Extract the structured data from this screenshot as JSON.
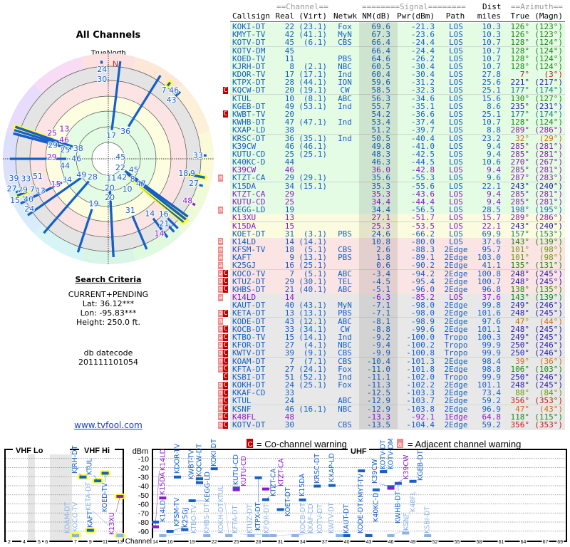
{
  "left_panel": {
    "title": "All Channels",
    "compass_label": "TrueNorth",
    "north_label": "N",
    "search_criteria": {
      "heading": "Search Criteria",
      "mode": "CURRENT+PENDING",
      "lat": "Lat: 36.12***",
      "lon": "Lon: -95.83***",
      "height": "Height: 250.0 ft.",
      "db_label": "db datecode",
      "db_value": "201111101054"
    },
    "link": "www.tvfool.com"
  },
  "table": {
    "group_headers": {
      "channel": "==Channel==",
      "signal": "========Signal========",
      "dist": "Dist",
      "azimuth": "==Azimuth=="
    },
    "columns": {
      "callsign": "Callsign",
      "real": "Real",
      "virt": "(Virt)",
      "netwk": "Netwk",
      "nm": "NM(dB)",
      "pwr": "Pwr(dBm)",
      "path": "Path",
      "dist": "miles",
      "true": "True",
      "magn": "(Magn)"
    },
    "rows": [
      {
        "callsign": "KOKI-DT",
        "real": "22",
        "virt": "(23.1)",
        "netwk": "Fox",
        "nm": "69.6",
        "pwr": "-21.3",
        "path": "LOS",
        "dist": "10.3",
        "true": "126°",
        "magn": "(123°)",
        "flags": "",
        "type": "digital",
        "zone": "green"
      },
      {
        "callsign": "KMYT-TV",
        "real": "42",
        "virt": "(41.1)",
        "netwk": "MyN",
        "nm": "67.3",
        "pwr": "-23.6",
        "path": "LOS",
        "dist": "10.3",
        "true": "126°",
        "magn": "(123°)",
        "flags": "",
        "type": "digital",
        "zone": "green"
      },
      {
        "callsign": "KOTV-DT",
        "real": "45",
        "virt": "(6.1)",
        "netwk": "CBS",
        "nm": "66.4",
        "pwr": "-24.4",
        "path": "LOS",
        "dist": "10.7",
        "true": "128°",
        "magn": "(124°)",
        "flags": "",
        "type": "digital",
        "zone": "green"
      },
      {
        "callsign": "KOTV-DM",
        "real": "45",
        "virt": "",
        "netwk": "",
        "nm": "66.4",
        "pwr": "-24.4",
        "path": "LOS",
        "dist": "10.7",
        "true": "128°",
        "magn": "(124°)",
        "flags": "",
        "type": "digital",
        "zone": "green"
      },
      {
        "callsign": "KOED-TV",
        "real": "11",
        "virt": "",
        "netwk": "PBS",
        "nm": "64.6",
        "pwr": "-26.2",
        "path": "LOS",
        "dist": "10.7",
        "true": "128°",
        "magn": "(124°)",
        "flags": "",
        "type": "digital",
        "zone": "green"
      },
      {
        "callsign": "KJRH-DT",
        "real": "8",
        "virt": "(2.1)",
        "netwk": "NBC",
        "nm": "60.5",
        "pwr": "-30.4",
        "path": "LOS",
        "dist": "10.7",
        "true": "128°",
        "magn": "(124°)",
        "flags": "",
        "type": "digital",
        "zone": "green"
      },
      {
        "callsign": "KDOR-TV",
        "real": "17",
        "virt": "(17.1)",
        "netwk": "Ind",
        "nm": "60.4",
        "pwr": "-30.4",
        "path": "LOS",
        "dist": "27.8",
        "true": "7°",
        "magn": "(3°)",
        "flags": "",
        "type": "digital",
        "zone": "green"
      },
      {
        "callsign": "KTPX-DT",
        "real": "28",
        "virt": "(44.1)",
        "netwk": "ION",
        "nm": "59.6",
        "pwr": "-31.2",
        "path": "LOS",
        "dist": "25.6",
        "true": "221°",
        "magn": "(217°)",
        "flags": "",
        "type": "digital",
        "zone": "green"
      },
      {
        "callsign": "KQCW-DT",
        "real": "20",
        "virt": "(19.1)",
        "netwk": "CW",
        "nm": "58.5",
        "pwr": "-32.3",
        "path": "LOS",
        "dist": "25.1",
        "true": "177°",
        "magn": "(174°)",
        "flags": "C",
        "type": "digital",
        "zone": "green"
      },
      {
        "callsign": "KTUL",
        "real": "10",
        "virt": "(8.1)",
        "netwk": "ABC",
        "nm": "56.3",
        "pwr": "-34.6",
        "path": "LOS",
        "dist": "15.6",
        "true": "130°",
        "magn": "(127°)",
        "flags": "",
        "type": "digital",
        "zone": "green"
      },
      {
        "callsign": "KGEB-DT",
        "real": "49",
        "virt": "(53.1)",
        "netwk": "Ind",
        "nm": "55.7",
        "pwr": "-35.1",
        "path": "LOS",
        "dist": "8.6",
        "true": "235°",
        "magn": "(231°)",
        "flags": "",
        "type": "digital",
        "zone": "green"
      },
      {
        "callsign": "KWBT-TV",
        "real": "20",
        "virt": "",
        "netwk": "",
        "nm": "54.2",
        "pwr": "-36.6",
        "path": "LOS",
        "dist": "25.1",
        "true": "177°",
        "magn": "(174°)",
        "flags": "C",
        "type": "digital",
        "zone": "green"
      },
      {
        "callsign": "KWHB-DT",
        "real": "47",
        "virt": "(47.1)",
        "netwk": "Ind",
        "nm": "53.4",
        "pwr": "-37.4",
        "path": "LOS",
        "dist": "10.7",
        "true": "128°",
        "magn": "(124°)",
        "flags": "",
        "type": "digital",
        "zone": "green"
      },
      {
        "callsign": "KXAP-LD",
        "real": "38",
        "virt": "",
        "netwk": "",
        "nm": "51.2",
        "pwr": "-39.7",
        "path": "LOS",
        "dist": "8.8",
        "true": "289°",
        "magn": "(286°)",
        "flags": "",
        "type": "digital",
        "zone": "green"
      },
      {
        "callsign": "KRSC-DT",
        "real": "36",
        "virt": "(35.1)",
        "netwk": "Ind",
        "nm": "50.5",
        "pwr": "-40.4",
        "path": "LOS",
        "dist": "23.2",
        "true": "32°",
        "magn": "(29°)",
        "flags": "",
        "type": "digital",
        "zone": "green"
      },
      {
        "callsign": "K39CW",
        "real": "46",
        "virt": "(46.1)",
        "netwk": "",
        "nm": "49.8",
        "pwr": "-41.0",
        "path": "LOS",
        "dist": "9.4",
        "true": "285°",
        "magn": "(281°)",
        "flags": "",
        "type": "digital",
        "zone": "green"
      },
      {
        "callsign": "KUTU-CD",
        "real": "25",
        "virt": "(25.1)",
        "netwk": "",
        "nm": "48.3",
        "pwr": "-42.5",
        "path": "LOS",
        "dist": "9.4",
        "true": "285°",
        "magn": "(281°)",
        "flags": "",
        "type": "digital",
        "zone": "green"
      },
      {
        "callsign": "K40KC-D",
        "real": "44",
        "virt": "",
        "netwk": "",
        "nm": "46.3",
        "pwr": "-44.5",
        "path": "LOS",
        "dist": "10.6",
        "true": "270°",
        "magn": "(267°)",
        "flags": "",
        "type": "digital",
        "zone": "green"
      },
      {
        "callsign": "K39CW",
        "real": "46",
        "virt": "",
        "netwk": "",
        "nm": "36.0",
        "pwr": "-42.8",
        "path": "LOS",
        "dist": "9.4",
        "true": "285°",
        "magn": "(281°)",
        "flags": "",
        "type": "analog",
        "zone": "green"
      },
      {
        "callsign": "KTZT-CA",
        "real": "29",
        "virt": "(29.1)",
        "netwk": "",
        "nm": "35.6",
        "pwr": "-55.3",
        "path": "LOS",
        "dist": "9.6",
        "true": "287°",
        "magn": "(283°)",
        "flags": "a",
        "type": "digital",
        "zone": "green"
      },
      {
        "callsign": "K15DA",
        "real": "34",
        "virt": "(15.1)",
        "netwk": "",
        "nm": "35.3",
        "pwr": "-55.6",
        "path": "LOS",
        "dist": "22.1",
        "true": "243°",
        "magn": "(240°)",
        "flags": "",
        "type": "digital",
        "zone": "green"
      },
      {
        "callsign": "KTZT-CA",
        "real": "29",
        "virt": "",
        "netwk": "",
        "nm": "35.3",
        "pwr": "-43.6",
        "path": "LOS",
        "dist": "9.4",
        "true": "285°",
        "magn": "(281°)",
        "flags": "",
        "type": "analog",
        "zone": "green"
      },
      {
        "callsign": "KUTU-CD",
        "real": "25",
        "virt": "",
        "netwk": "",
        "nm": "34.4",
        "pwr": "-44.4",
        "path": "LOS",
        "dist": "9.4",
        "true": "285°",
        "magn": "(281°)",
        "flags": "",
        "type": "analog",
        "zone": "green"
      },
      {
        "callsign": "KEGG-LD",
        "real": "19",
        "virt": "",
        "netwk": "",
        "nm": "34.4",
        "pwr": "-56.5",
        "path": "LOS",
        "dist": "28.5",
        "true": "198°",
        "magn": "(195°)",
        "flags": "a",
        "type": "digital",
        "zone": "green"
      },
      {
        "callsign": "K13XU",
        "real": "13",
        "virt": "",
        "netwk": "",
        "nm": "27.1",
        "pwr": "-51.7",
        "path": "LOS",
        "dist": "15.7",
        "true": "289°",
        "magn": "(286°)",
        "flags": "",
        "type": "analog",
        "zone": "yellow"
      },
      {
        "callsign": "K15DA",
        "real": "15",
        "virt": "",
        "netwk": "",
        "nm": "25.3",
        "pwr": "-53.5",
        "path": "LOS",
        "dist": "22.1",
        "true": "243°",
        "magn": "(240°)",
        "flags": "",
        "type": "analog",
        "zone": "yellow"
      },
      {
        "callsign": "KOET-DT",
        "real": "31",
        "virt": "(3.1)",
        "netwk": "PBS",
        "nm": "24.6",
        "pwr": "-66.2",
        "path": "LOS",
        "dist": "69.9",
        "true": "157°",
        "magn": "(153°)",
        "flags": "",
        "type": "digital",
        "zone": "yellow"
      },
      {
        "callsign": "K14LD",
        "real": "14",
        "virt": "(14.1)",
        "netwk": "",
        "nm": "10.8",
        "pwr": "-80.0",
        "path": "LOS",
        "dist": "37.6",
        "true": "143°",
        "magn": "(139°)",
        "flags": "a",
        "type": "digital",
        "zone": "pink"
      },
      {
        "callsign": "KFSM-TV",
        "real": "18",
        "virt": "(5.1)",
        "netwk": "CBS",
        "nm": "2.6",
        "pwr": "-88.3",
        "path": "2Edge",
        "dist": "95.7",
        "true": "101°",
        "magn": "(98°)",
        "flags": "a",
        "type": "digital",
        "zone": "pink"
      },
      {
        "callsign": "KAFT",
        "real": "9",
        "virt": "(13.1)",
        "netwk": "PBS",
        "nm": "1.8",
        "pwr": "-89.1",
        "path": "2Edge",
        "dist": "103.0",
        "true": "101°",
        "magn": "(98°)",
        "flags": "a",
        "type": "digital",
        "zone": "pink"
      },
      {
        "callsign": "K25GJ",
        "real": "16",
        "virt": "(25.1)",
        "netwk": "",
        "nm": "0.6",
        "pwr": "-90.2",
        "path": "2Edge",
        "dist": "41.1",
        "true": "135°",
        "magn": "(131°)",
        "flags": "a",
        "type": "digital",
        "zone": "pink"
      },
      {
        "callsign": "KOCO-TV",
        "real": "7",
        "virt": "(5.1)",
        "netwk": "ABC",
        "nm": "-3.4",
        "pwr": "-94.2",
        "path": "2Edge",
        "dist": "100.8",
        "true": "248°",
        "magn": "(245°)",
        "flags": "aC",
        "type": "digital",
        "zone": "pink"
      },
      {
        "callsign": "KTUZ-DT",
        "real": "29",
        "virt": "(30.1)",
        "netwk": "TEL",
        "nm": "-4.5",
        "pwr": "-95.4",
        "path": "2Edge",
        "dist": "100.7",
        "true": "248°",
        "magn": "(245°)",
        "flags": "aC",
        "type": "digital",
        "zone": "pink"
      },
      {
        "callsign": "KHBS-DT",
        "real": "21",
        "virt": "(40.1)",
        "netwk": "ABC",
        "nm": "-5.1",
        "pwr": "-96.0",
        "path": "2Edge",
        "dist": "96.8",
        "true": "138°",
        "magn": "(135°)",
        "flags": "aC",
        "type": "digital",
        "zone": "pink"
      },
      {
        "callsign": "K14LD",
        "real": "14",
        "virt": "",
        "netwk": "",
        "nm": "-6.3",
        "pwr": "-85.2",
        "path": "LOS",
        "dist": "37.6",
        "true": "143°",
        "magn": "(139°)",
        "flags": "a",
        "type": "analog",
        "zone": "gray"
      },
      {
        "callsign": "KAUT-DT",
        "real": "40",
        "virt": "(43.1)",
        "netwk": "MyN",
        "nm": "-7.1",
        "pwr": "-98.0",
        "path": "2Edge",
        "dist": "99.8",
        "true": "249°",
        "magn": "(246°)",
        "flags": "",
        "type": "digital",
        "zone": "gray"
      },
      {
        "callsign": "KETA-DT",
        "real": "13",
        "virt": "(13.1)",
        "netwk": "PBS",
        "nm": "-7.1",
        "pwr": "-98.0",
        "path": "2Edge",
        "dist": "101.6",
        "true": "248°",
        "magn": "(245°)",
        "flags": "aC",
        "type": "digital",
        "zone": "gray"
      },
      {
        "callsign": "KODE-DT",
        "real": "43",
        "virt": "(12.1)",
        "netwk": "ABC",
        "nm": "-8.1",
        "pwr": "-98.9",
        "path": "2Edge",
        "dist": "97.6",
        "true": "47°",
        "magn": "(44°)",
        "flags": "a",
        "type": "digital",
        "zone": "gray"
      },
      {
        "callsign": "KOCB-DT",
        "real": "33",
        "virt": "(34.1)",
        "netwk": "CW",
        "nm": "-8.8",
        "pwr": "-99.6",
        "path": "2Edge",
        "dist": "101.1",
        "true": "248°",
        "magn": "(245°)",
        "flags": "aC",
        "type": "digital",
        "zone": "gray"
      },
      {
        "callsign": "KTBO-TV",
        "real": "15",
        "virt": "(14.1)",
        "netwk": "Ind",
        "nm": "-9.2",
        "pwr": "-100.0",
        "path": "Tropo",
        "dist": "100.3",
        "true": "249°",
        "magn": "(245°)",
        "flags": "aC",
        "type": "digital",
        "zone": "gray"
      },
      {
        "callsign": "KFOR-DT",
        "real": "27",
        "virt": "(4.1)",
        "netwk": "NBC",
        "nm": "-9.4",
        "pwr": "-100.2",
        "path": "Tropo",
        "dist": "99.9",
        "true": "250°",
        "magn": "(246°)",
        "flags": "aC",
        "type": "digital",
        "zone": "gray"
      },
      {
        "callsign": "KWTV-DT",
        "real": "39",
        "virt": "(9.1)",
        "netwk": "CBS",
        "nm": "-9.9",
        "pwr": "-100.8",
        "path": "Tropo",
        "dist": "99.9",
        "true": "250°",
        "magn": "(246°)",
        "flags": "aC",
        "type": "digital",
        "zone": "gray"
      },
      {
        "callsign": "KOAM-DT",
        "real": "7",
        "virt": "(7.1)",
        "netwk": "CBS",
        "nm": "-10.4",
        "pwr": "-101.3",
        "path": "2Edge",
        "dist": "98.4",
        "true": "39°",
        "magn": "(36°)",
        "flags": "aC",
        "type": "digital",
        "zone": "gray"
      },
      {
        "callsign": "KFTA-DT",
        "real": "27",
        "virt": "(24.1)",
        "netwk": "Fox",
        "nm": "-11.0",
        "pwr": "-101.8",
        "path": "2Edge",
        "dist": "98.8",
        "true": "106°",
        "magn": "(103°)",
        "flags": "aC",
        "type": "digital",
        "zone": "gray"
      },
      {
        "callsign": "KSBI-DT",
        "real": "51",
        "virt": "(52.1)",
        "netwk": "Ind",
        "nm": "-11.1",
        "pwr": "-102.0",
        "path": "Tropo",
        "dist": "99.9",
        "true": "250°",
        "magn": "(246°)",
        "flags": "C",
        "type": "digital",
        "zone": "gray"
      },
      {
        "callsign": "KOKH-DT",
        "real": "24",
        "virt": "(25.1)",
        "netwk": "Fox",
        "nm": "-11.3",
        "pwr": "-102.2",
        "path": "2Edge",
        "dist": "101.1",
        "true": "248°",
        "magn": "(245°)",
        "flags": "aC",
        "type": "digital",
        "zone": "gray"
      },
      {
        "callsign": "KKAF-CD",
        "real": "33",
        "virt": "",
        "netwk": "",
        "nm": "-12.5",
        "pwr": "-103.3",
        "path": "2Edge",
        "dist": "73.4",
        "true": "88°",
        "magn": "(84°)",
        "flags": "aC",
        "type": "digital",
        "zone": "gray"
      },
      {
        "callsign": "KTUL",
        "real": "24",
        "virt": "",
        "netwk": "ABC",
        "nm": "-12.9",
        "pwr": "-103.7",
        "path": "2Edge",
        "dist": "59.2",
        "true": "356°",
        "magn": "(353°)",
        "flags": "aC",
        "type": "digital",
        "zone": "gray"
      },
      {
        "callsign": "KSNF",
        "real": "46",
        "virt": "(16.1)",
        "netwk": "NBC",
        "nm": "-12.9",
        "pwr": "-103.8",
        "path": "2Edge",
        "dist": "96.9",
        "true": "47°",
        "magn": "(43°)",
        "flags": "aC",
        "type": "digital",
        "zone": "gray"
      },
      {
        "callsign": "K48FL",
        "real": "48",
        "virt": "",
        "netwk": "",
        "nm": "-13.3",
        "pwr": "-92.1",
        "path": "1Edge",
        "dist": "64.8",
        "true": "118°",
        "magn": "(115°)",
        "flags": "aC",
        "type": "analog",
        "zone": "gray"
      },
      {
        "callsign": "KOTV-DT",
        "real": "30",
        "virt": "",
        "netwk": "CBS",
        "nm": "-13.5",
        "pwr": "-104.4",
        "path": "2Edge",
        "dist": "59.2",
        "true": "356°",
        "magn": "(353°)",
        "flags": "aC",
        "type": "digital",
        "zone": "gray"
      }
    ]
  },
  "spectrum": {
    "bands": {
      "vhf_lo": "VHF Lo",
      "vhf_hi": "VHF Hi",
      "uhf": "UHF"
    },
    "y_unit": "dBm",
    "y_ticks": [
      "-10",
      "-20",
      "-30",
      "-40",
      "-50",
      "-60",
      "-70",
      "-80",
      "-90"
    ],
    "x_label": "Channel",
    "x_ticks_vhf": [
      "2",
      "4",
      "5",
      "6",
      "7",
      "9",
      "11",
      "13"
    ],
    "x_ticks_uhf": [
      "14",
      "16",
      "19",
      "22",
      "25",
      "28",
      "31",
      "34",
      "37",
      "40",
      "43",
      "46",
      "49",
      "52",
      "55",
      "58",
      "61",
      "64",
      "67",
      "69"
    ],
    "legend": {
      "co_flag": "C",
      "co_text": "= Co-channel warning",
      "adj_flag": "a",
      "adj_text": "= Adjacent channel warning"
    }
  },
  "colors": {
    "digital": "#1560c8",
    "analog": "#8a1ad0",
    "flag_co": "#c00000",
    "flag_adj": "#f08a8a",
    "zone_green": "#e4fbe4",
    "zone_yellow": "#fbfbe0",
    "zone_pink": "#fbe4e4",
    "zone_gray": "#e8e8e8"
  }
}
